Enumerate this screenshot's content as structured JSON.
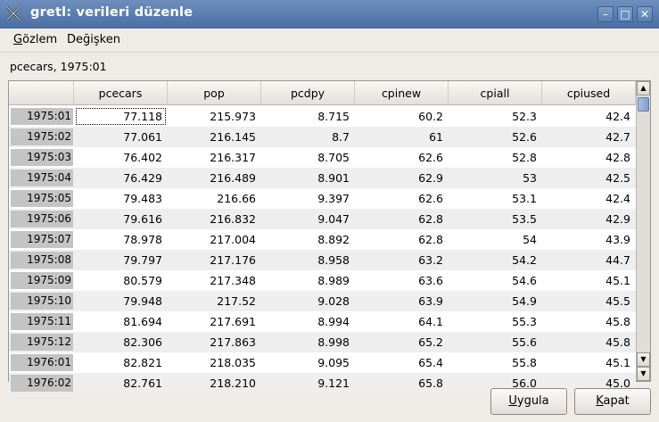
{
  "window": {
    "title": "gretl: verileri düzenle"
  },
  "menubar": {
    "items": [
      {
        "label_u": "G",
        "label_rest": "özlem"
      },
      {
        "label_u": "",
        "label_rest": "Değişken"
      }
    ]
  },
  "cell_label": "pcecars, 1975:01",
  "table": {
    "columns": [
      "",
      "pcecars",
      "pop",
      "pcdpy",
      "cpinew",
      "cpiall",
      "cpiused"
    ],
    "rows": [
      [
        "1975:01",
        "77.118",
        "215.973",
        "8.715",
        "60.2",
        "52.3",
        "42.4"
      ],
      [
        "1975:02",
        "77.061",
        "216.145",
        "8.7",
        "61",
        "52.6",
        "42.7"
      ],
      [
        "1975:03",
        "76.402",
        "216.317",
        "8.705",
        "62.6",
        "52.8",
        "42.8"
      ],
      [
        "1975:04",
        "76.429",
        "216.489",
        "8.901",
        "62.9",
        "53",
        "42.5"
      ],
      [
        "1975:05",
        "79.483",
        "216.66",
        "9.397",
        "62.6",
        "53.1",
        "42.4"
      ],
      [
        "1975:06",
        "79.616",
        "216.832",
        "9.047",
        "62.8",
        "53.5",
        "42.9"
      ],
      [
        "1975:07",
        "78.978",
        "217.004",
        "8.892",
        "62.8",
        "54",
        "43.9"
      ],
      [
        "1975:08",
        "79.797",
        "217.176",
        "8.958",
        "63.2",
        "54.2",
        "44.7"
      ],
      [
        "1975:09",
        "80.579",
        "217.348",
        "8.989",
        "63.6",
        "54.6",
        "45.1"
      ],
      [
        "1975:10",
        "79.948",
        "217.52",
        "9.028",
        "63.9",
        "54.9",
        "45.5"
      ],
      [
        "1975:11",
        "81.694",
        "217.691",
        "8.994",
        "64.1",
        "55.3",
        "45.8"
      ],
      [
        "1975:12",
        "82.306",
        "217.863",
        "8.998",
        "65.2",
        "55.6",
        "45.8"
      ],
      [
        "1976:01",
        "82.821",
        "218.035",
        "9.095",
        "65.4",
        "55.8",
        "45.1"
      ],
      [
        "1976:02",
        "82.761",
        "218.210",
        "9.121",
        "65.8",
        "56.0",
        "45.0"
      ]
    ]
  },
  "buttons": {
    "apply": {
      "label_u": "U",
      "label_rest": "ygula"
    },
    "close": {
      "label_u": "K",
      "label_rest": "apat"
    }
  },
  "icons": {
    "app": "gretl-x-icon",
    "minimize": "minimize-icon",
    "maximize": "maximize-icon",
    "close": "close-icon"
  }
}
